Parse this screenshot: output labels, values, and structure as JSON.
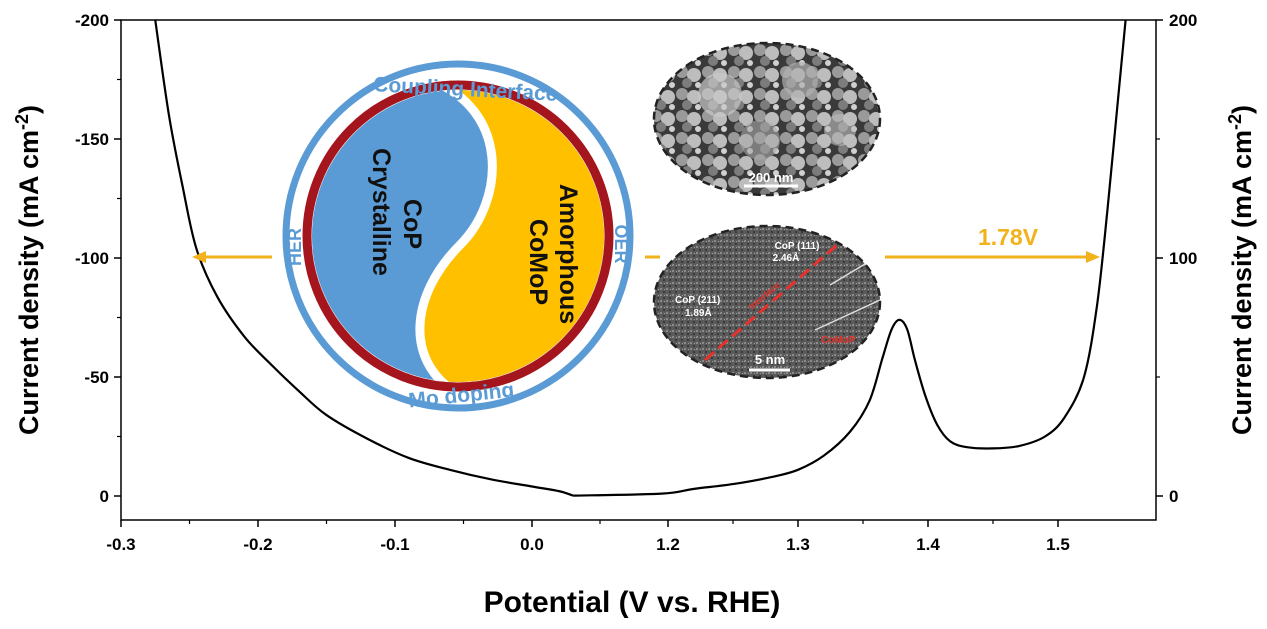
{
  "chart_data": {
    "type": "line",
    "xlabel": "Potential (V vs. RHE)",
    "ylabel_left": "Current density (mA cm",
    "ylabel_right": "Current density (mA cm",
    "ylabel_sup": "-2",
    "ylabel_close": ")",
    "x_tick_labels": [
      "-0.3",
      "-0.2",
      "-0.1",
      "0.0",
      "1.2",
      "1.3",
      "1.4",
      "1.5"
    ],
    "y_left_ticks": [
      "-200",
      "-150",
      "-100",
      "-50",
      "0"
    ],
    "y_right_ticks": [
      "200",
      "100",
      "0"
    ],
    "y_left_range": [
      -200,
      0
    ],
    "y_right_range": [
      0,
      200
    ],
    "annotation_voltage": "1.78V",
    "series": [
      {
        "segment": "HER",
        "x_axis": "left half",
        "points": [
          [
            -0.275,
            -200
          ],
          [
            -0.265,
            -160
          ],
          [
            -0.255,
            -130
          ],
          [
            -0.245,
            -104
          ],
          [
            -0.23,
            -84
          ],
          [
            -0.21,
            -67
          ],
          [
            -0.19,
            -55
          ],
          [
            -0.17,
            -44
          ],
          [
            -0.15,
            -34
          ],
          [
            -0.12,
            -24
          ],
          [
            -0.09,
            -16
          ],
          [
            -0.06,
            -11
          ],
          [
            -0.03,
            -7
          ],
          [
            0.0,
            -4
          ],
          [
            0.02,
            -2
          ],
          [
            0.03,
            1
          ]
        ]
      },
      {
        "segment": "OER",
        "x_axis": "right half",
        "points": [
          [
            1.195,
            1
          ],
          [
            1.22,
            3
          ],
          [
            1.25,
            5
          ],
          [
            1.28,
            8
          ],
          [
            1.3,
            11
          ],
          [
            1.32,
            17
          ],
          [
            1.34,
            27
          ],
          [
            1.355,
            40
          ],
          [
            1.365,
            58
          ],
          [
            1.372,
            70
          ],
          [
            1.378,
            74
          ],
          [
            1.384,
            70
          ],
          [
            1.39,
            57
          ],
          [
            1.398,
            42
          ],
          [
            1.407,
            30
          ],
          [
            1.417,
            23
          ],
          [
            1.43,
            20.5
          ],
          [
            1.45,
            20
          ],
          [
            1.47,
            21
          ],
          [
            1.49,
            25
          ],
          [
            1.505,
            33
          ],
          [
            1.52,
            50
          ],
          [
            1.53,
            80
          ],
          [
            1.538,
            120
          ],
          [
            1.545,
            160
          ],
          [
            1.552,
            200
          ]
        ]
      }
    ]
  },
  "schematic": {
    "ring_top": "Coupling Interface",
    "ring_bottom": "Mo doping",
    "ring_left": "HER",
    "ring_right": "OER",
    "blue_line1": "CoP",
    "blue_line2": "Crystalline",
    "yellow_line1": "Amorphous",
    "yellow_line2": "CoMoP",
    "sem_scale": "200 nm",
    "tem_label_a": "CoP (111)",
    "tem_label_b": "2.46Å",
    "tem_label_c": "CoP (211)",
    "tem_label_d": "1.89Å",
    "tem_label_e": "Interface",
    "tem_label_f": "CoMoP",
    "tem_scale": "5 nm"
  },
  "colors": {
    "ring_blue": "#5b9bd5",
    "ring_red": "#a5151d",
    "fill_blue": "#5b9bd5",
    "fill_yellow": "#ffc000",
    "arrow": "#f2b21b",
    "interface_red": "#e8312a"
  }
}
